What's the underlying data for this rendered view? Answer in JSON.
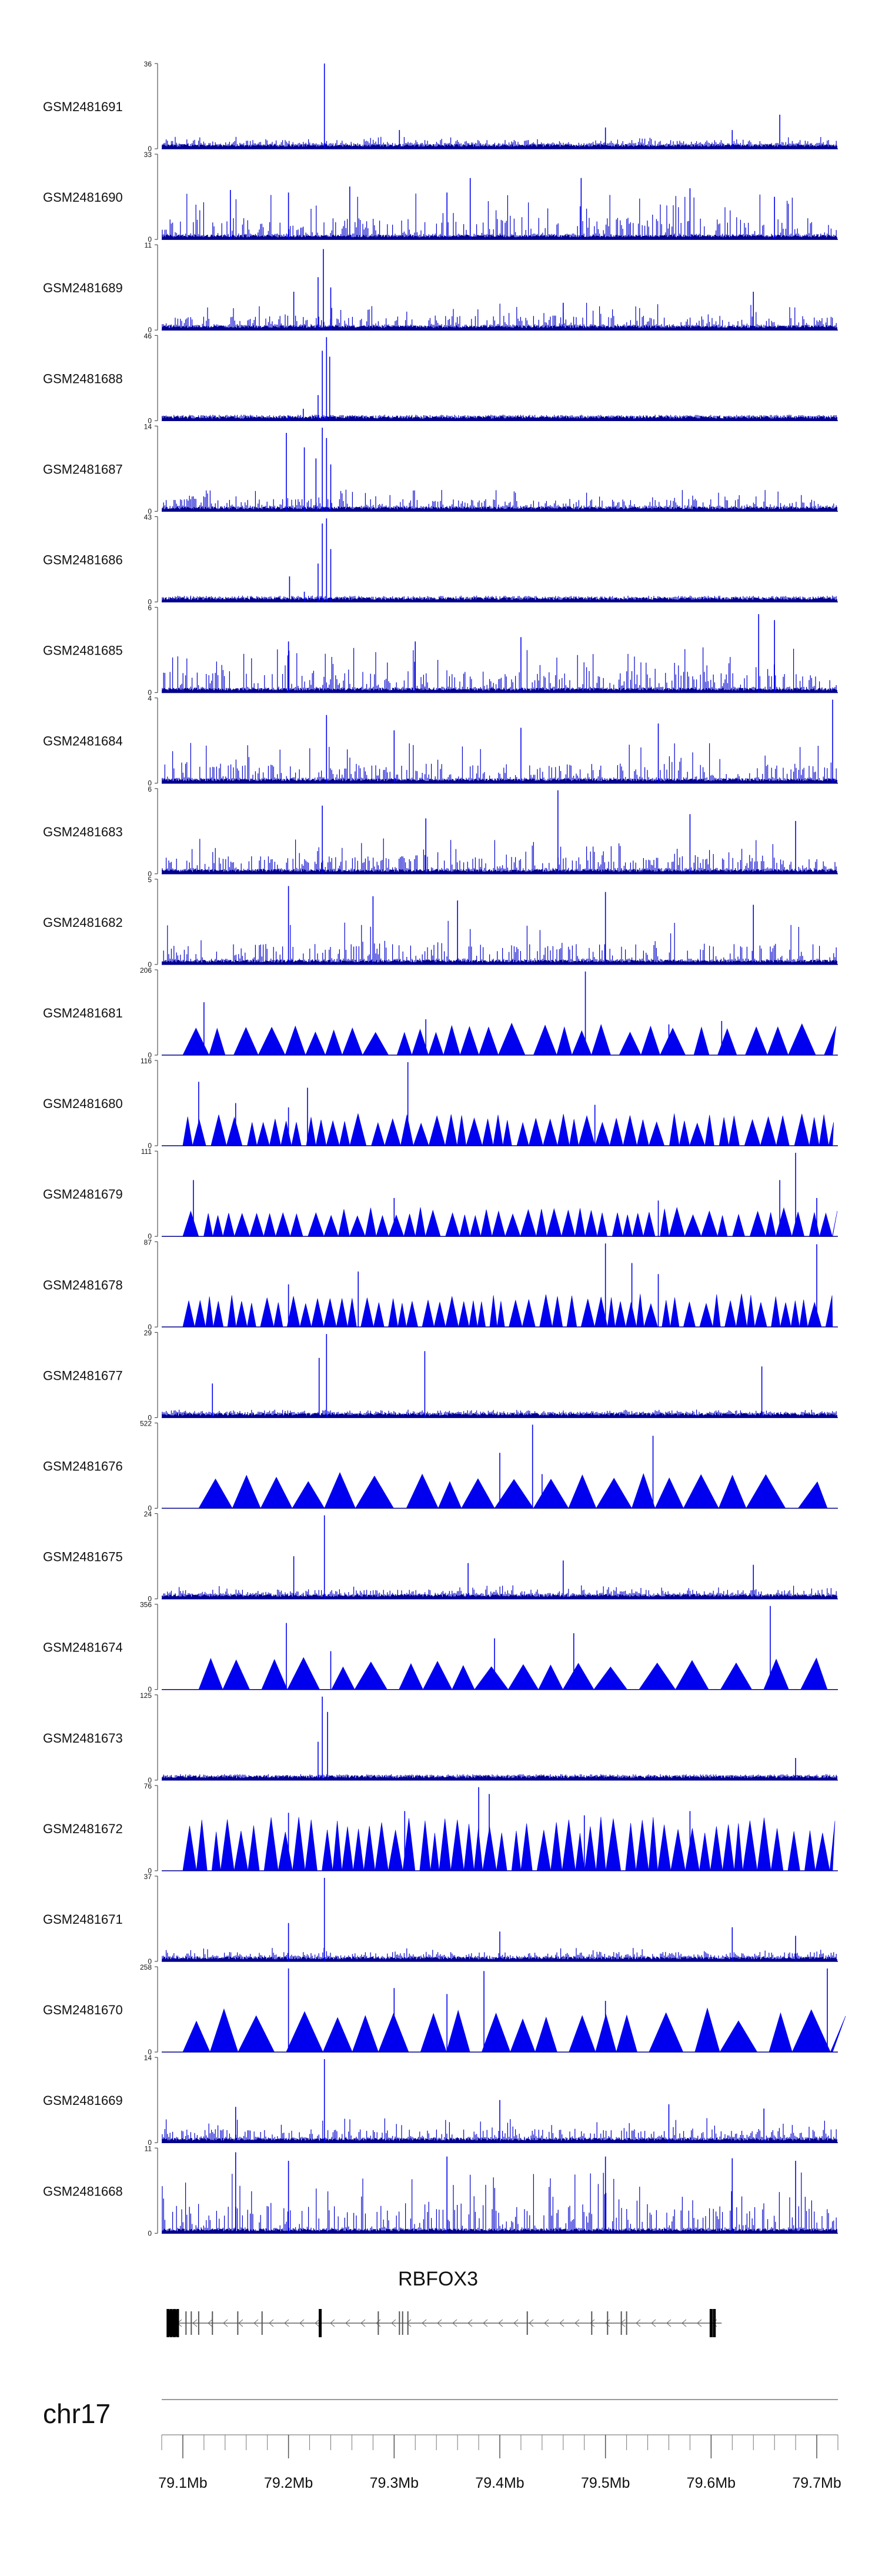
{
  "chart_data": {
    "type": "area",
    "chromosome": "chr17",
    "x_range": [
      79.08,
      79.72
    ],
    "x_ticks": [
      {
        "value": 79.1,
        "label": "79.1Mb"
      },
      {
        "value": 79.2,
        "label": "79.2Mb"
      },
      {
        "value": 79.3,
        "label": "79.3Mb"
      },
      {
        "value": 79.4,
        "label": "79.4Mb"
      },
      {
        "value": 79.5,
        "label": "79.5Mb"
      },
      {
        "value": 79.6,
        "label": "79.6Mb"
      },
      {
        "value": 79.7,
        "label": "79.7Mb"
      }
    ],
    "minor_tick_step": 0.02,
    "gene": {
      "name": "RBFOX3",
      "start": 79.085,
      "end": 79.61,
      "strand": "-",
      "exons": [
        79.086,
        79.089,
        79.092,
        79.095,
        79.103,
        79.108,
        79.115,
        79.128,
        79.152,
        79.175,
        79.23,
        79.285,
        79.305,
        79.308,
        79.313,
        79.426,
        79.487,
        79.502,
        79.515,
        79.52,
        79.6,
        79.603
      ]
    },
    "series": [
      {
        "name": "GSM2481691",
        "ymax": 36,
        "pattern": "dense",
        "base": 0.09,
        "peaks": [
          {
            "x": 79.234,
            "v": 1.0
          },
          {
            "x": 79.665,
            "v": 0.4
          },
          {
            "x": 79.305,
            "v": 0.22
          },
          {
            "x": 79.5,
            "v": 0.25
          },
          {
            "x": 79.62,
            "v": 0.22
          }
        ]
      },
      {
        "name": "GSM2481690",
        "ymax": 33,
        "pattern": "dense",
        "base": 0.34,
        "peaks": [
          {
            "x": 79.372,
            "v": 0.72
          },
          {
            "x": 79.477,
            "v": 0.72
          },
          {
            "x": 79.145,
            "v": 0.58
          },
          {
            "x": 79.258,
            "v": 0.62
          },
          {
            "x": 79.2,
            "v": 0.55
          },
          {
            "x": 79.35,
            "v": 0.55
          },
          {
            "x": 79.58,
            "v": 0.6
          },
          {
            "x": 79.66,
            "v": 0.5
          }
        ]
      },
      {
        "name": "GSM2481689",
        "ymax": 11,
        "pattern": "dense",
        "base": 0.2,
        "peaks": [
          {
            "x": 79.228,
            "v": 0.62
          },
          {
            "x": 79.233,
            "v": 0.95
          },
          {
            "x": 79.24,
            "v": 0.5
          },
          {
            "x": 79.205,
            "v": 0.45
          },
          {
            "x": 79.64,
            "v": 0.45
          },
          {
            "x": 79.46,
            "v": 0.32
          }
        ]
      },
      {
        "name": "GSM2481688",
        "ymax": 46,
        "pattern": "dense",
        "base": 0.03,
        "peaks": [
          {
            "x": 79.228,
            "v": 0.3
          },
          {
            "x": 79.232,
            "v": 0.82
          },
          {
            "x": 79.236,
            "v": 0.98
          },
          {
            "x": 79.239,
            "v": 0.75
          },
          {
            "x": 79.214,
            "v": 0.14
          },
          {
            "x": 79.2,
            "v": 0.06
          }
        ]
      },
      {
        "name": "GSM2481687",
        "ymax": 14,
        "pattern": "dense",
        "base": 0.16,
        "peaks": [
          {
            "x": 79.198,
            "v": 0.92
          },
          {
            "x": 79.226,
            "v": 0.62
          },
          {
            "x": 79.232,
            "v": 0.98
          },
          {
            "x": 79.236,
            "v": 0.86
          },
          {
            "x": 79.24,
            "v": 0.55
          },
          {
            "x": 79.215,
            "v": 0.75
          }
        ]
      },
      {
        "name": "GSM2481686",
        "ymax": 43,
        "pattern": "dense",
        "base": 0.04,
        "peaks": [
          {
            "x": 79.201,
            "v": 0.3
          },
          {
            "x": 79.228,
            "v": 0.45
          },
          {
            "x": 79.232,
            "v": 0.92
          },
          {
            "x": 79.236,
            "v": 0.98
          },
          {
            "x": 79.24,
            "v": 0.62
          },
          {
            "x": 79.215,
            "v": 0.12
          }
        ]
      },
      {
        "name": "GSM2481685",
        "ymax": 6,
        "pattern": "dense",
        "base": 0.34,
        "peaks": [
          {
            "x": 79.645,
            "v": 0.92
          },
          {
            "x": 79.66,
            "v": 0.85
          },
          {
            "x": 79.42,
            "v": 0.65
          },
          {
            "x": 79.32,
            "v": 0.6
          },
          {
            "x": 79.2,
            "v": 0.6
          }
        ]
      },
      {
        "name": "GSM2481684",
        "ymax": 4,
        "pattern": "dense",
        "base": 0.3,
        "peaks": [
          {
            "x": 79.236,
            "v": 0.8
          },
          {
            "x": 79.715,
            "v": 0.98
          },
          {
            "x": 79.55,
            "v": 0.7
          },
          {
            "x": 79.42,
            "v": 0.65
          },
          {
            "x": 79.3,
            "v": 0.62
          }
        ]
      },
      {
        "name": "GSM2481683",
        "ymax": 6,
        "pattern": "dense",
        "base": 0.26,
        "peaks": [
          {
            "x": 79.232,
            "v": 0.8
          },
          {
            "x": 79.455,
            "v": 0.98
          },
          {
            "x": 79.58,
            "v": 0.7
          },
          {
            "x": 79.33,
            "v": 0.65
          },
          {
            "x": 79.68,
            "v": 0.62
          }
        ]
      },
      {
        "name": "GSM2481682",
        "ymax": 5,
        "pattern": "dense",
        "base": 0.34,
        "peaks": [
          {
            "x": 79.2,
            "v": 0.92
          },
          {
            "x": 79.28,
            "v": 0.8
          },
          {
            "x": 79.5,
            "v": 0.85
          },
          {
            "x": 79.36,
            "v": 0.75
          },
          {
            "x": 79.64,
            "v": 0.7
          }
        ]
      },
      {
        "name": "GSM2481681",
        "ymax": 206,
        "pattern": "tri",
        "tri_start": 79.1,
        "tri_end": 79.715,
        "tri_width": 0.02,
        "tri_height": 0.33,
        "peaks": [
          {
            "x": 79.481,
            "v": 0.98
          },
          {
            "x": 79.12,
            "v": 0.62
          },
          {
            "x": 79.33,
            "v": 0.42
          },
          {
            "x": 79.61,
            "v": 0.4
          },
          {
            "x": 79.56,
            "v": 0.36
          }
        ]
      },
      {
        "name": "GSM2481680",
        "ymax": 116,
        "pattern": "tri",
        "tri_start": 79.1,
        "tri_end": 79.715,
        "tri_width": 0.012,
        "tri_height": 0.33,
        "peaks": [
          {
            "x": 79.313,
            "v": 0.98
          },
          {
            "x": 79.115,
            "v": 0.75
          },
          {
            "x": 79.218,
            "v": 0.68
          },
          {
            "x": 79.15,
            "v": 0.5
          },
          {
            "x": 79.49,
            "v": 0.48
          },
          {
            "x": 79.2,
            "v": 0.45
          }
        ]
      },
      {
        "name": "GSM2481679",
        "ymax": 111,
        "pattern": "tri",
        "tri_start": 79.1,
        "tri_end": 79.715,
        "tri_width": 0.012,
        "tri_height": 0.3,
        "peaks": [
          {
            "x": 79.68,
            "v": 0.98
          },
          {
            "x": 79.665,
            "v": 0.66
          },
          {
            "x": 79.11,
            "v": 0.66
          },
          {
            "x": 79.3,
            "v": 0.45
          },
          {
            "x": 79.55,
            "v": 0.42
          },
          {
            "x": 79.7,
            "v": 0.45
          }
        ]
      },
      {
        "name": "GSM2481678",
        "ymax": 87,
        "pattern": "tri",
        "tri_start": 79.1,
        "tri_end": 79.715,
        "tri_width": 0.01,
        "tri_height": 0.34,
        "peaks": [
          {
            "x": 79.5,
            "v": 0.98
          },
          {
            "x": 79.7,
            "v": 0.97
          },
          {
            "x": 79.525,
            "v": 0.75
          },
          {
            "x": 79.55,
            "v": 0.62
          },
          {
            "x": 79.266,
            "v": 0.65
          },
          {
            "x": 79.2,
            "v": 0.5
          }
        ]
      },
      {
        "name": "GSM2481677",
        "ymax": 29,
        "pattern": "dense",
        "base": 0.06,
        "peaks": [
          {
            "x": 79.236,
            "v": 0.98
          },
          {
            "x": 79.229,
            "v": 0.7
          },
          {
            "x": 79.329,
            "v": 0.78
          },
          {
            "x": 79.648,
            "v": 0.6
          },
          {
            "x": 79.128,
            "v": 0.4
          }
        ]
      },
      {
        "name": "GSM2481676",
        "ymax": 522,
        "pattern": "tri",
        "tri_start": 79.115,
        "tri_end": 79.71,
        "tri_width": 0.03,
        "tri_height": 0.38,
        "peaks": [
          {
            "x": 79.4,
            "v": 0.65
          },
          {
            "x": 79.431,
            "v": 0.98
          },
          {
            "x": 79.545,
            "v": 0.85
          },
          {
            "x": 79.44,
            "v": 0.4
          }
        ]
      },
      {
        "name": "GSM2481675",
        "ymax": 24,
        "pattern": "dense",
        "base": 0.1,
        "peaks": [
          {
            "x": 79.234,
            "v": 0.98
          },
          {
            "x": 79.205,
            "v": 0.5
          },
          {
            "x": 79.37,
            "v": 0.42
          },
          {
            "x": 79.46,
            "v": 0.45
          },
          {
            "x": 79.64,
            "v": 0.4
          }
        ]
      },
      {
        "name": "GSM2481674",
        "ymax": 356,
        "pattern": "tri",
        "tri_start": 79.115,
        "tri_end": 79.71,
        "tri_width": 0.028,
        "tri_height": 0.33,
        "peaks": [
          {
            "x": 79.656,
            "v": 0.98
          },
          {
            "x": 79.47,
            "v": 0.66
          },
          {
            "x": 79.198,
            "v": 0.78
          },
          {
            "x": 79.395,
            "v": 0.6
          },
          {
            "x": 79.24,
            "v": 0.45
          }
        ]
      },
      {
        "name": "GSM2481673",
        "ymax": 125,
        "pattern": "dense",
        "base": 0.03,
        "peaks": [
          {
            "x": 79.232,
            "v": 0.98
          },
          {
            "x": 79.237,
            "v": 0.8
          },
          {
            "x": 79.228,
            "v": 0.45
          },
          {
            "x": 79.68,
            "v": 0.26
          }
        ]
      },
      {
        "name": "GSM2481672",
        "ymax": 76,
        "pattern": "tri",
        "tri_start": 79.1,
        "tri_end": 79.715,
        "tri_width": 0.011,
        "tri_height": 0.55,
        "peaks": [
          {
            "x": 79.38,
            "v": 0.98
          },
          {
            "x": 79.39,
            "v": 0.9
          },
          {
            "x": 79.31,
            "v": 0.7
          },
          {
            "x": 79.2,
            "v": 0.68
          },
          {
            "x": 79.58,
            "v": 0.7
          },
          {
            "x": 79.48,
            "v": 0.65
          }
        ]
      },
      {
        "name": "GSM2481671",
        "ymax": 37,
        "pattern": "dense",
        "base": 0.1,
        "peaks": [
          {
            "x": 79.234,
            "v": 0.98
          },
          {
            "x": 79.2,
            "v": 0.45
          },
          {
            "x": 79.62,
            "v": 0.4
          },
          {
            "x": 79.4,
            "v": 0.35
          },
          {
            "x": 79.68,
            "v": 0.3
          }
        ]
      },
      {
        "name": "GSM2481670",
        "ymax": 258,
        "pattern": "tri",
        "tri_start": 79.1,
        "tri_end": 79.715,
        "tri_width": 0.028,
        "tri_height": 0.45,
        "peaks": [
          {
            "x": 79.2,
            "v": 0.98
          },
          {
            "x": 79.385,
            "v": 0.95
          },
          {
            "x": 79.71,
            "v": 0.98
          },
          {
            "x": 79.3,
            "v": 0.75
          },
          {
            "x": 79.35,
            "v": 0.68
          },
          {
            "x": 79.5,
            "v": 0.6
          }
        ]
      },
      {
        "name": "GSM2481669",
        "ymax": 14,
        "pattern": "dense",
        "base": 0.18,
        "peaks": [
          {
            "x": 79.234,
            "v": 0.98
          },
          {
            "x": 79.4,
            "v": 0.5
          },
          {
            "x": 79.56,
            "v": 0.45
          },
          {
            "x": 79.15,
            "v": 0.42
          },
          {
            "x": 79.65,
            "v": 0.4
          }
        ]
      },
      {
        "name": "GSM2481668",
        "ymax": 11,
        "pattern": "dense",
        "base": 0.45,
        "peaks": [
          {
            "x": 79.15,
            "v": 0.95
          },
          {
            "x": 79.35,
            "v": 0.9
          },
          {
            "x": 79.5,
            "v": 0.9
          },
          {
            "x": 79.2,
            "v": 0.85
          },
          {
            "x": 79.62,
            "v": 0.88
          },
          {
            "x": 79.68,
            "v": 0.85
          }
        ]
      }
    ]
  }
}
